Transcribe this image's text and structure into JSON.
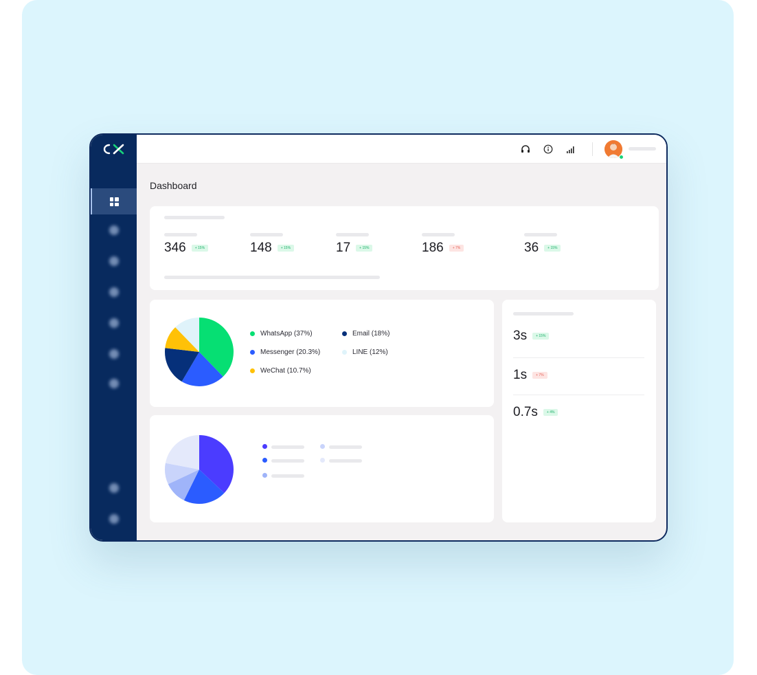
{
  "page": {
    "title": "Dashboard"
  },
  "brand": {
    "logo_text": "CX",
    "sidebar_color": "#082a5e",
    "accent": "#19d37a"
  },
  "sidebar": {
    "items": [
      {
        "icon": "dashboard-grid-icon",
        "active": true
      },
      {
        "icon": "chat-icon",
        "active": false
      },
      {
        "icon": "phone-icon",
        "active": false
      },
      {
        "icon": "contacts-icon",
        "active": false
      },
      {
        "icon": "reports-icon",
        "active": false
      },
      {
        "icon": "campaigns-icon",
        "active": false
      },
      {
        "icon": "filter-icon",
        "active": false
      },
      {
        "icon": "help-icon",
        "active": false
      },
      {
        "icon": "settings-icon",
        "active": false
      }
    ]
  },
  "topbar": {
    "icons": [
      "headset-icon",
      "info-icon",
      "signal-icon"
    ]
  },
  "kpis": [
    {
      "value": "346",
      "delta": "+ 15%",
      "trend": "up"
    },
    {
      "value": "148",
      "delta": "+ 15%",
      "trend": "up"
    },
    {
      "value": "17",
      "delta": "+ 15%",
      "trend": "up"
    },
    {
      "value": "186",
      "delta": "+ 7%",
      "trend": "down"
    },
    {
      "value": "36",
      "delta": "+ 15%",
      "trend": "up"
    }
  ],
  "response_metrics": [
    {
      "value": "3s",
      "delta": "+ 15%",
      "trend": "up"
    },
    {
      "value": "1s",
      "delta": "+ 7%",
      "trend": "down"
    },
    {
      "value": "0.7s",
      "delta": "+ 4%",
      "trend": "up"
    }
  ],
  "chart_data": [
    {
      "type": "pie",
      "categories": [
        "WhatsApp",
        "Messenger",
        "Email",
        "WeChat",
        "LINE"
      ],
      "values": [
        37,
        20.3,
        18,
        10.7,
        12
      ],
      "colors": [
        "#06df73",
        "#2b5cff",
        "#06307a",
        "#ffc107",
        "#dff3fa"
      ],
      "legend": [
        "WhatsApp (37%)",
        "Email (18%)",
        "Messenger (20.3%)",
        "LINE (12%)",
        "WeChat (10.7%)"
      ],
      "legend_placement": "right"
    },
    {
      "type": "pie",
      "values": [
        37,
        20.3,
        10.7,
        10,
        22
      ],
      "colors": [
        "#4b3cff",
        "#2b5cff",
        "#9fb4f9",
        "#c9d4fb",
        "#e4e9fb"
      ],
      "legend_placement": "right"
    }
  ]
}
